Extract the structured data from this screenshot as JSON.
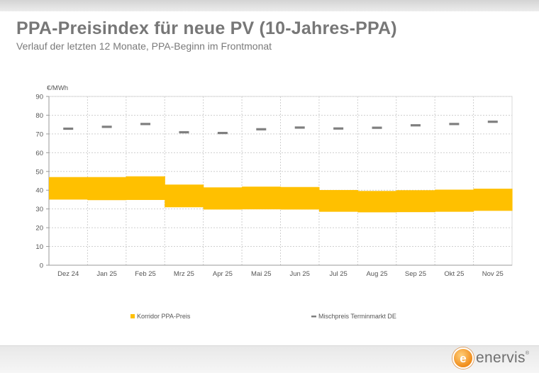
{
  "header": {
    "title": "PPA-Preisindex für neue PV (10-Jahres-PPA)",
    "subtitle": "Verlauf der letzten 12 Monate, PPA-Beginn im Frontmonat"
  },
  "logo": {
    "text": "enervis",
    "mark": "e",
    "registered": "®"
  },
  "chart_data": {
    "type": "bar",
    "ylabel": "€/MWh",
    "ylim": [
      0,
      90
    ],
    "yticks": [
      0,
      10,
      20,
      30,
      40,
      50,
      60,
      70,
      80,
      90
    ],
    "categories": [
      "Dez 24",
      "Jan 25",
      "Feb 25",
      "Mrz 25",
      "Apr 25",
      "Mai 25",
      "Jun 25",
      "Jul 25",
      "Aug 25",
      "Sep 25",
      "Okt 25",
      "Nov 25"
    ],
    "grid": true,
    "legend_position": "bottom",
    "series": [
      {
        "name": "Korridor PPA-Preis",
        "kind": "floating-band",
        "color": "#ffc000",
        "low": [
          35.0,
          34.7,
          34.8,
          30.9,
          29.7,
          29.8,
          29.7,
          28.5,
          28.2,
          28.3,
          28.5,
          29.0
        ],
        "high": [
          47.0,
          47.0,
          47.4,
          43.0,
          41.5,
          41.9,
          41.7,
          40.1,
          39.6,
          40.0,
          40.3,
          40.8
        ]
      },
      {
        "name": "Mischpreis Terminmarkt DE",
        "kind": "dash-marker",
        "color": "#7f7f7f",
        "values": [
          72.8,
          73.8,
          75.3,
          70.9,
          70.5,
          72.5,
          73.4,
          72.9,
          73.3,
          74.6,
          75.3,
          76.5
        ]
      }
    ]
  }
}
